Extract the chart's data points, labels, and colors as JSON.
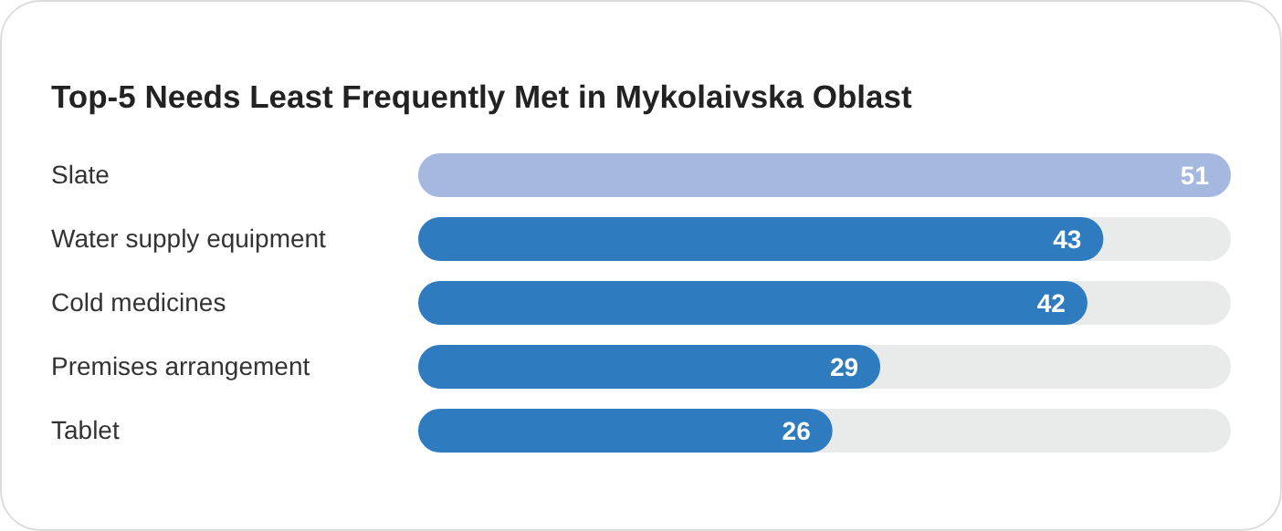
{
  "chart_data": {
    "type": "bar",
    "orientation": "horizontal",
    "title": "Top-5 Needs Least Frequently Met in Mykolaivska Oblast",
    "categories": [
      "Slate",
      "Water supply equipment",
      "Cold medicines",
      "Premises arrangement",
      "Tablet"
    ],
    "values": [
      51,
      43,
      42,
      29,
      26
    ],
    "colors": [
      "#a4b8e0",
      "#2f7bbf",
      "#2f7bbf",
      "#2f7bbf",
      "#2f7bbf"
    ],
    "data_labels": true
  }
}
